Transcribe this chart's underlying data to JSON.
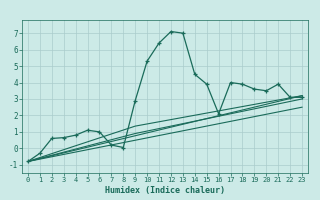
{
  "xlabel": "Humidex (Indice chaleur)",
  "bg_color": "#cceae7",
  "line_color": "#1a6b5a",
  "xlim": [
    -0.5,
    23.5
  ],
  "ylim": [
    -1.5,
    7.8
  ],
  "xticks": [
    0,
    1,
    2,
    3,
    4,
    5,
    6,
    7,
    8,
    9,
    10,
    11,
    12,
    13,
    14,
    15,
    16,
    17,
    18,
    19,
    20,
    21,
    22,
    23
  ],
  "yticks": [
    -1,
    0,
    1,
    2,
    3,
    4,
    5,
    6,
    7
  ],
  "main_line_x": [
    0,
    1,
    2,
    3,
    4,
    5,
    6,
    7,
    8,
    9,
    10,
    11,
    12,
    13,
    14,
    15,
    16,
    17,
    18,
    19,
    20,
    21,
    22,
    23
  ],
  "main_line_y": [
    -0.8,
    -0.3,
    0.6,
    0.65,
    0.8,
    1.1,
    1.0,
    0.2,
    0.05,
    2.9,
    5.3,
    6.4,
    7.1,
    7.0,
    4.5,
    3.9,
    2.1,
    4.0,
    3.9,
    3.6,
    3.5,
    3.9,
    3.1,
    3.1
  ],
  "line2_x": [
    0,
    23
  ],
  "line2_y": [
    -0.8,
    3.2
  ],
  "line3_x": [
    0,
    23
  ],
  "line3_y": [
    -0.8,
    2.5
  ],
  "line4_x": [
    0,
    9,
    23
  ],
  "line4_y": [
    -0.8,
    1.35,
    3.2
  ],
  "line5_x": [
    0,
    9,
    23
  ],
  "line5_y": [
    -0.8,
    0.9,
    3.0
  ]
}
